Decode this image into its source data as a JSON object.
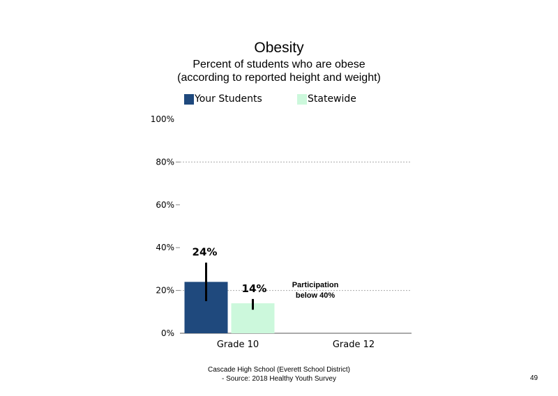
{
  "chart_data": {
    "type": "bar",
    "title": "Obesity",
    "subtitle_lines": [
      "Percent of students who are obese",
      "(according to reported height and weight)"
    ],
    "categories": [
      "Grade 10",
      "Grade 12"
    ],
    "series": [
      {
        "name": "Your Students",
        "color": "#1f497d",
        "values": [
          24,
          null
        ],
        "error_low": [
          15,
          null
        ],
        "error_high": [
          33,
          null
        ]
      },
      {
        "name": "Statewide",
        "color": "#ccf8dc",
        "values": [
          14,
          null
        ],
        "error_low": [
          11,
          null
        ],
        "error_high": [
          16,
          null
        ]
      }
    ],
    "data_labels": [
      "24%",
      "14%"
    ],
    "ylim": [
      0,
      100
    ],
    "y_ticks": [
      {
        "value": 0,
        "label": "0%"
      },
      {
        "value": 20,
        "label": "20%"
      },
      {
        "value": 40,
        "label": "40%"
      },
      {
        "value": 60,
        "label": "60%"
      },
      {
        "value": 80,
        "label": "80%"
      },
      {
        "value": 100,
        "label": "100%"
      }
    ],
    "gridlines": [
      20,
      80
    ],
    "annotation": {
      "category": "Grade 12",
      "lines": [
        "Participation",
        "below 40%"
      ]
    },
    "legend_position": "top"
  },
  "footer": {
    "line1": "Cascade High School (Everett School District)",
    "line2": "- Source: 2018 Healthy  Youth Survey"
  },
  "page_number": "49"
}
